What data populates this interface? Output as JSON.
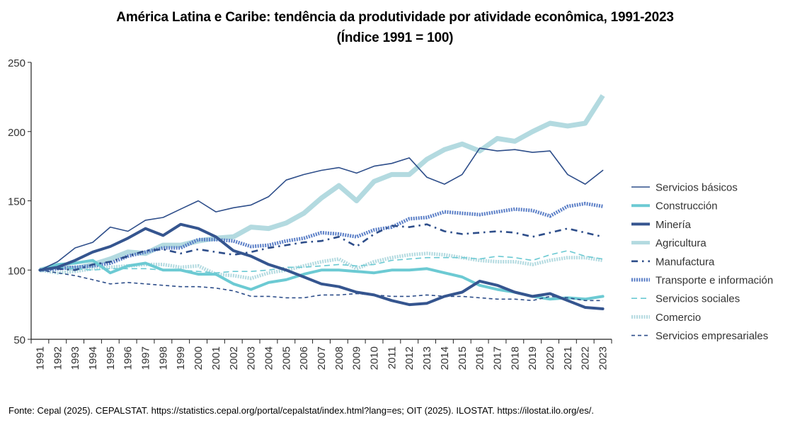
{
  "chart_data": {
    "type": "line",
    "title_line1": "América Latina e Caribe: tendência da produtividade por atividade econômica, 1991-2023",
    "title_line2": "(Índice 1991 = 100)",
    "xlabel": "",
    "ylabel": "",
    "ylim": [
      50,
      250
    ],
    "yticks": [
      "50",
      "100",
      "150",
      "200",
      "250"
    ],
    "grid": false,
    "legend_position": "right",
    "x": [
      "1991",
      "1992",
      "1993",
      "1994",
      "1995",
      "1996",
      "1997",
      "1998",
      "1999",
      "2000",
      "2001",
      "2002",
      "2003",
      "2004",
      "2005",
      "2006",
      "2007",
      "2008",
      "2009",
      "2010",
      "2011",
      "2012",
      "2013",
      "2014",
      "2015",
      "2016",
      "2017",
      "2018",
      "2019",
      "2020",
      "2021",
      "2022",
      "2023"
    ],
    "series": [
      {
        "name": "Servicios básicos",
        "style": "thin-solid",
        "color": "#2E4E8A",
        "values": [
          100,
          106,
          116,
          120,
          131,
          128,
          136,
          138,
          144,
          150,
          142,
          145,
          147,
          153,
          165,
          169,
          172,
          174,
          170,
          175,
          177,
          181,
          167,
          162,
          169,
          188,
          186,
          187,
          185,
          186,
          169,
          162,
          172
        ]
      },
      {
        "name": "Construcción",
        "style": "thick-solid",
        "color": "#6CCAD3",
        "values": [
          100,
          104,
          105,
          107,
          98,
          103,
          105,
          100,
          100,
          97,
          97,
          90,
          86,
          91,
          93,
          97,
          100,
          100,
          99,
          98,
          100,
          100,
          101,
          98,
          95,
          89,
          86,
          84,
          81,
          79,
          80,
          79,
          81
        ]
      },
      {
        "name": "Minería",
        "style": "thick-solid",
        "color": "#35558F",
        "values": [
          100,
          102,
          107,
          113,
          117,
          123,
          130,
          125,
          133,
          130,
          124,
          114,
          110,
          104,
          100,
          95,
          90,
          88,
          84,
          82,
          78,
          75,
          76,
          81,
          84,
          92,
          89,
          84,
          81,
          83,
          78,
          73,
          72
        ]
      },
      {
        "name": "Agricultura",
        "style": "extra-thick-solid",
        "color": "#B3DAE0",
        "values": [
          100,
          103,
          101,
          104,
          108,
          113,
          112,
          118,
          118,
          121,
          123,
          124,
          131,
          130,
          134,
          141,
          152,
          161,
          150,
          164,
          169,
          169,
          180,
          187,
          191,
          186,
          195,
          193,
          200,
          206,
          204,
          206,
          226
        ]
      },
      {
        "name": "Manufactura",
        "style": "dash-dot",
        "color": "#2E4E8A",
        "values": [
          100,
          101,
          100,
          104,
          106,
          110,
          114,
          115,
          112,
          115,
          113,
          111,
          113,
          116,
          118,
          120,
          121,
          124,
          117,
          126,
          132,
          131,
          133,
          128,
          126,
          127,
          128,
          127,
          124,
          127,
          130,
          127,
          124
        ]
      },
      {
        "name": "Transporte e información",
        "style": "thick-dotted",
        "color": "#5B7FC7",
        "values": [
          100,
          101,
          102,
          103,
          105,
          110,
          113,
          116,
          116,
          122,
          122,
          121,
          117,
          118,
          121,
          123,
          127,
          126,
          124,
          129,
          131,
          137,
          138,
          142,
          141,
          140,
          142,
          144,
          143,
          139,
          146,
          148,
          146
        ]
      },
      {
        "name": "Servicios sociales",
        "style": "dashed",
        "color": "#6CCAD3",
        "values": [
          100,
          102,
          101,
          100,
          101,
          101,
          101,
          100,
          100,
          99,
          98,
          99,
          99,
          100,
          102,
          102,
          103,
          104,
          103,
          104,
          107,
          108,
          109,
          109,
          109,
          108,
          110,
          109,
          107,
          111,
          114,
          110,
          108
        ]
      },
      {
        "name": "Comercio",
        "style": "thick-dotted",
        "color": "#B3DAE0",
        "values": [
          100,
          98,
          99,
          101,
          102,
          103,
          104,
          104,
          102,
          103,
          97,
          96,
          94,
          98,
          100,
          103,
          106,
          108,
          101,
          106,
          109,
          111,
          112,
          111,
          109,
          107,
          106,
          106,
          104,
          107,
          109,
          109,
          107
        ]
      },
      {
        "name": "Servicios empresariales",
        "style": "short-dashed",
        "color": "#2E4E8A",
        "values": [
          100,
          98,
          96,
          93,
          90,
          91,
          90,
          89,
          88,
          88,
          87,
          85,
          81,
          81,
          80,
          80,
          82,
          82,
          83,
          82,
          81,
          81,
          82,
          81,
          81,
          80,
          79,
          79,
          78,
          81,
          80,
          78,
          78
        ]
      }
    ]
  },
  "source_note": "Fonte: Cepal (2025). CEPALSTAT. https://statistics.cepal.org/portal/cepalstat/index.html?lang=es; OIT (2025). ILOSTAT. https://ilostat.ilo.org/es/."
}
